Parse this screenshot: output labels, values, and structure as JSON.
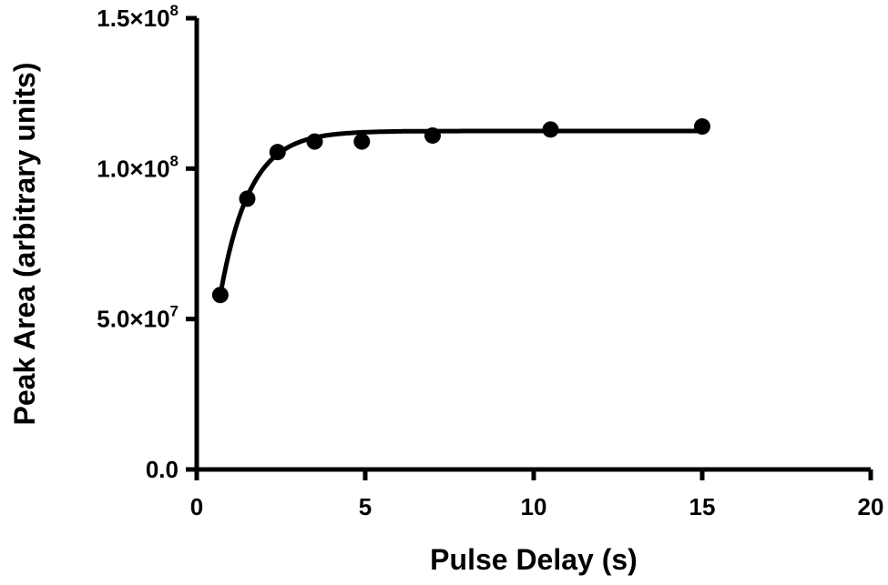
{
  "chart_data": {
    "type": "scatter",
    "title": "",
    "xlabel": "Pulse Delay (s)",
    "ylabel": "Peak Area (arbitrary units)",
    "xlim": [
      0,
      20
    ],
    "ylim": [
      0,
      150000000
    ],
    "x_ticks": [
      0,
      5,
      10,
      15,
      20
    ],
    "x_tick_labels": [
      "0",
      "5",
      "10",
      "15",
      "20"
    ],
    "y_ticks": [
      {
        "value": 0,
        "mantissa": "0.0",
        "exponent": ""
      },
      {
        "value": 50000000,
        "mantissa": "5.0×10",
        "exponent": "7"
      },
      {
        "value": 100000000,
        "mantissa": "1.0×10",
        "exponent": "8"
      },
      {
        "value": 150000000,
        "mantissa": "1.5×10",
        "exponent": "8"
      }
    ],
    "grid": false,
    "series": [
      {
        "x": [
          0.7,
          1.5,
          2.4,
          3.5,
          4.9,
          7.0,
          10.5,
          15.0
        ],
        "y": [
          58000000,
          90000000,
          105500000,
          109000000,
          109000000,
          111000000,
          113000000,
          114000000
        ],
        "marker": "circle",
        "color": "#000000"
      }
    ],
    "fit_curve": {
      "type": "exponential saturation",
      "x_range": [
        0.7,
        15.0
      ],
      "y_max": 112500000,
      "y_at_start": 58000000,
      "rate": 1.15,
      "color": "#000000"
    }
  }
}
